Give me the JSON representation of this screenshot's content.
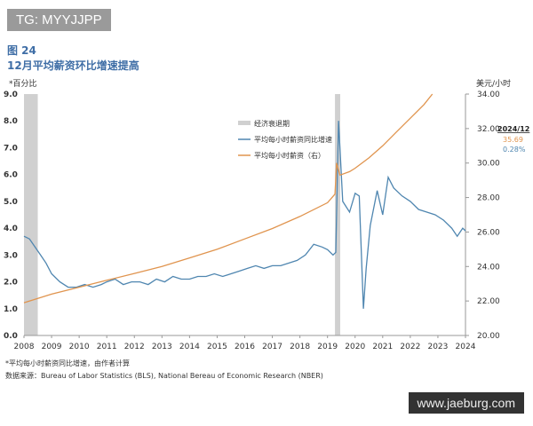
{
  "watermarks": {
    "top": "TG: MYYJJPP",
    "bottom": "www.jaeburg.com"
  },
  "figure_label": "图 24",
  "chart_data": {
    "type": "line",
    "title": "12月平均薪资环比增速提高",
    "left_axis_label": "*百分比",
    "right_axis_label": "美元/小时",
    "ylim_left": [
      0,
      9
    ],
    "ylim_right": [
      20,
      34
    ],
    "xlim": [
      2008,
      2024
    ],
    "left_ticks": [
      "0.0",
      "1.0",
      "2.0",
      "3.0",
      "4.0",
      "5.0",
      "6.0",
      "7.0",
      "8.0",
      "9.0"
    ],
    "right_ticks": [
      "20.00",
      "22.00",
      "24.00",
      "26.00",
      "28.00",
      "30.00",
      "32.00",
      "34.00"
    ],
    "x_ticks": [
      "2008",
      "2009",
      "2010",
      "2011",
      "2012",
      "2013",
      "2014",
      "2015",
      "2016",
      "2017",
      "2018",
      "2019",
      "2020",
      "2021",
      "2022",
      "2023",
      "2024"
    ],
    "grid": false,
    "legend_position": "top-center",
    "recessions": {
      "name": "经济衰退期",
      "periods": [
        [
          2008.0,
          2008.5
        ],
        [
          2019.27,
          2019.46
        ]
      ],
      "color": "#d0d0d0"
    },
    "series": [
      {
        "name": "平均每小时薪资同比增速",
        "axis": "left",
        "color": "#4f86b0",
        "x": [
          2008,
          2008.2,
          2008.4,
          2008.6,
          2008.8,
          2009,
          2009.3,
          2009.6,
          2009.9,
          2010.2,
          2010.5,
          2010.8,
          2011.0,
          2011.3,
          2011.6,
          2011.9,
          2012.2,
          2012.5,
          2012.8,
          2013.1,
          2013.4,
          2013.7,
          2014,
          2014.3,
          2014.6,
          2014.9,
          2015.2,
          2015.5,
          2015.8,
          2016.1,
          2016.4,
          2016.7,
          2017,
          2017.3,
          2017.6,
          2017.9,
          2018.2,
          2018.5,
          2018.8,
          2019.0,
          2019.2,
          2019.3,
          2019.4,
          2019.55,
          2019.8,
          2020.0,
          2020.15,
          2020.3,
          2020.4,
          2020.55,
          2020.8,
          2021.0,
          2021.2,
          2021.4,
          2021.7,
          2022.0,
          2022.3,
          2022.6,
          2022.9,
          2023.2,
          2023.5,
          2023.7,
          2023.9,
          2024
        ],
        "values": [
          3.7,
          3.6,
          3.3,
          3.0,
          2.7,
          2.3,
          2.0,
          1.8,
          1.8,
          1.9,
          1.8,
          1.9,
          2.0,
          2.1,
          1.9,
          2.0,
          2.0,
          1.9,
          2.1,
          2.0,
          2.2,
          2.1,
          2.1,
          2.2,
          2.2,
          2.3,
          2.2,
          2.3,
          2.4,
          2.5,
          2.6,
          2.5,
          2.6,
          2.6,
          2.7,
          2.8,
          3.0,
          3.4,
          3.3,
          3.2,
          3.0,
          3.1,
          8.0,
          5.0,
          4.6,
          5.3,
          5.2,
          1.0,
          2.5,
          4.1,
          5.4,
          4.5,
          5.9,
          5.5,
          5.2,
          5.0,
          4.7,
          4.6,
          4.5,
          4.3,
          4.0,
          3.7,
          4.0,
          3.9
        ]
      },
      {
        "name": "平均每小时薪资（右）",
        "axis": "right",
        "color": "#e0944e",
        "x": [
          2008,
          2009,
          2010,
          2011,
          2012,
          2013,
          2014,
          2015,
          2016,
          2017,
          2018,
          2019,
          2019.27,
          2019.33,
          2019.45,
          2019.8,
          2020,
          2020.5,
          2021,
          2021.5,
          2022,
          2022.5,
          2022.8
        ],
        "values": [
          21.9,
          22.4,
          22.8,
          23.2,
          23.6,
          24.0,
          24.5,
          25.0,
          25.6,
          26.2,
          26.9,
          27.7,
          28.2,
          30.0,
          29.3,
          29.5,
          29.7,
          30.3,
          31.0,
          31.8,
          32.6,
          33.4,
          34.0
        ]
      }
    ],
    "annotation": {
      "date": "2024/12",
      "wage": "35.69",
      "growth": "0.28%"
    }
  },
  "footnote": "*平均每小时薪资同比增速，由作者计算",
  "source": "数据来源：Bureau of Labor Statistics (BLS), National Bereau of Economic Research (NBER)"
}
